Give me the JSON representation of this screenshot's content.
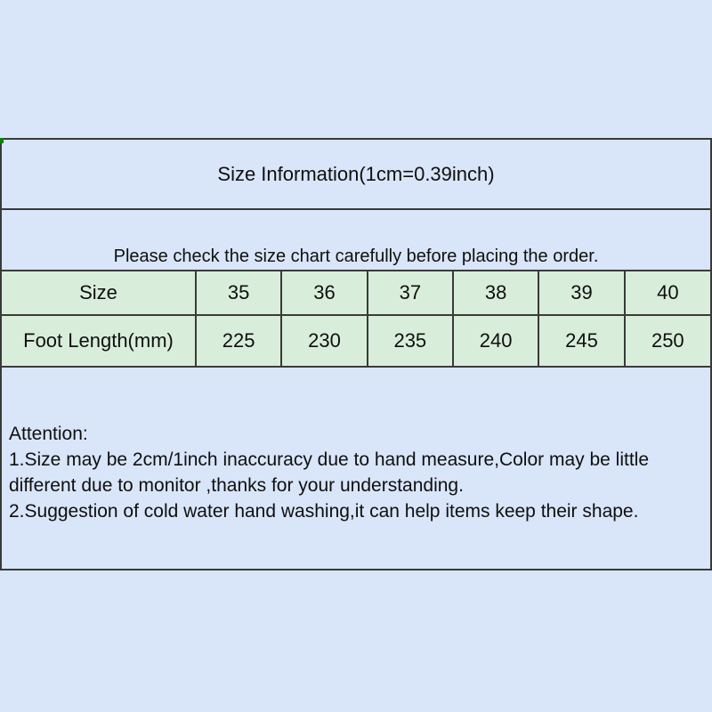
{
  "colors": {
    "page-bg": "#d9e5f9",
    "cell-green": "#d9eeda",
    "border": "#3a3a3a",
    "text": "#0f0f0f",
    "artifact-green": "#0c7f0c"
  },
  "header": {
    "title": "Size Information(1cm=0.39inch)",
    "notice": "Please check the size chart carefully before placing the order."
  },
  "size_table": {
    "rows": [
      {
        "label": "Size",
        "values": [
          "35",
          "36",
          "37",
          "38",
          "39",
          "40"
        ]
      },
      {
        "label": "Foot Length(mm)",
        "values": [
          "225",
          "230",
          "235",
          "240",
          "245",
          "250"
        ]
      }
    ]
  },
  "attention": {
    "heading": "Attention:",
    "lines": [
      "1.Size may be 2cm/1inch inaccuracy due to hand measure,Color may be little",
      "different due to monitor ,thanks for your understanding.",
      "2.Suggestion of cold water hand washing,it can help items keep their shape."
    ]
  }
}
